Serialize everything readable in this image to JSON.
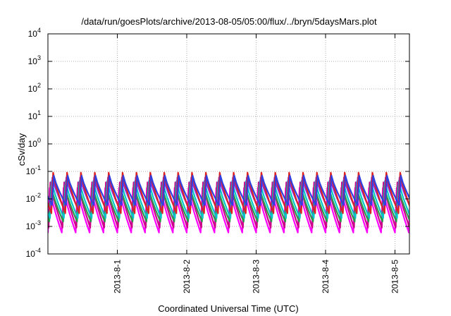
{
  "chart_data": {
    "type": "line",
    "title": "/data/run/goesPlots/archive/2013-08-05/05:00/flux/../bryn/5daysMars.plot",
    "xlabel": "Coordinated Universal Time (UTC)",
    "ylabel": "cSv/day",
    "scale": {
      "y": "log"
    },
    "grid": true,
    "xlim": [
      "2013-07-31T00:00",
      "2013-08-05T05:00"
    ],
    "ylim": [
      0.0001,
      10000
    ],
    "x_ticks": [
      {
        "date": "2013-08-01T00:00",
        "label": "2013-8-1"
      },
      {
        "date": "2013-08-02T00:00",
        "label": "2013-8-2"
      },
      {
        "date": "2013-08-03T00:00",
        "label": "2013-8-3"
      },
      {
        "date": "2013-08-04T00:00",
        "label": "2013-8-4"
      },
      {
        "date": "2013-08-05T00:00",
        "label": "2013-8-5"
      }
    ],
    "y_ticks": [
      {
        "value": 0.0001,
        "base": "10",
        "exp": "-4"
      },
      {
        "value": 0.001,
        "base": "10",
        "exp": "-3"
      },
      {
        "value": 0.01,
        "base": "10",
        "exp": "-2"
      },
      {
        "value": 0.1,
        "base": "10",
        "exp": "-1"
      },
      {
        "value": 1,
        "base": "10",
        "exp": "0"
      },
      {
        "value": 10,
        "base": "10",
        "exp": "1"
      },
      {
        "value": 100,
        "base": "10",
        "exp": "2"
      },
      {
        "value": 1000,
        "base": "10",
        "exp": "3"
      },
      {
        "value": 10000,
        "base": "10",
        "exp": "4"
      }
    ],
    "pattern": {
      "period_hours": 4.8,
      "rise_hours": 0.6
    },
    "series": [
      {
        "color": "#ff00ff",
        "peak": 0.025,
        "trough": 0.0006
      },
      {
        "color": "#cc0088",
        "peak": 0.04,
        "trough": 0.0009
      },
      {
        "color": "#2a9d4a",
        "peak": 0.03,
        "trough": 0.0015
      },
      {
        "color": "#00c8c8",
        "peak": 0.045,
        "trough": 0.002
      },
      {
        "color": "#8a2be2",
        "peak": 0.06,
        "trough": 0.004
      },
      {
        "color": "#dd2222",
        "peak": 0.09,
        "trough": 0.003
      },
      {
        "color": "#3040e0",
        "peak": 0.07,
        "trough": 0.006
      }
    ]
  }
}
